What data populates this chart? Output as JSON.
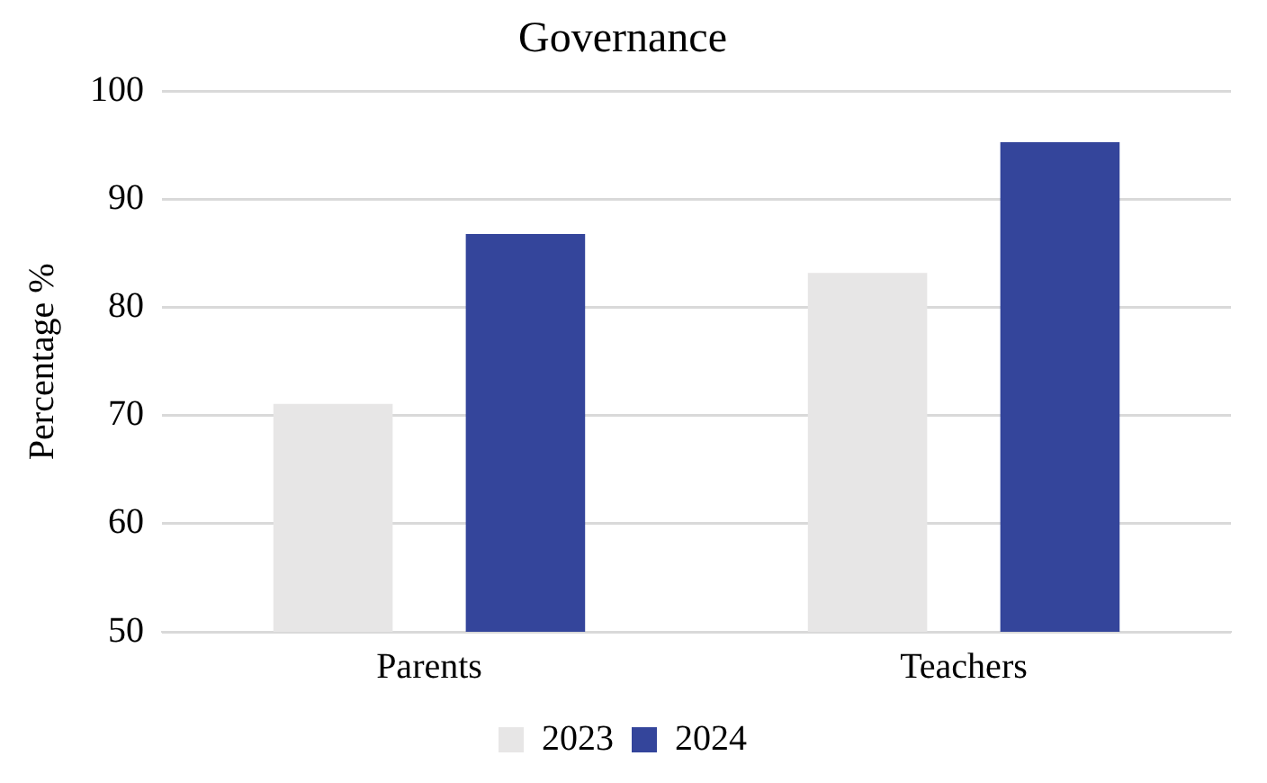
{
  "chart_data": {
    "type": "bar",
    "title": "Governance",
    "ylabel": "Percentage %",
    "categories": [
      "Parents",
      "Teachers"
    ],
    "series": [
      {
        "name": "2023",
        "color": "#e7e6e6",
        "values": [
          71.1,
          83.2
        ]
      },
      {
        "name": "2024",
        "color": "#34459b",
        "values": [
          86.8,
          95.3
        ]
      }
    ],
    "ylim": [
      50,
      100
    ],
    "yticks": [
      50,
      60,
      70,
      80,
      90,
      100
    ],
    "grid": "y",
    "legend": "bottom"
  }
}
